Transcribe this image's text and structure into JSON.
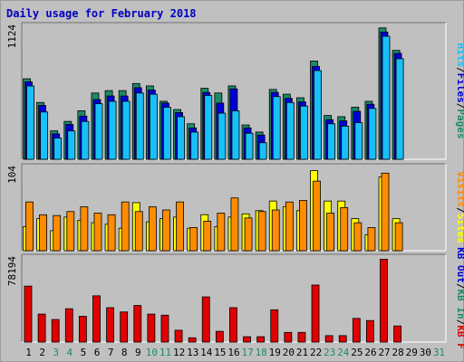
{
  "title": "Daily usage for February 2018",
  "colors": {
    "hits": "#1c8a6a",
    "files": "#0000d8",
    "pages": "#18c0f8",
    "visits": "#ffff00",
    "sites": "#ff8c00",
    "kb_in": "#1c8a6a",
    "kb_out": "#0000d8",
    "kb_f": "#e00000",
    "day_green": "#1c8a6a",
    "day_black": "#000000"
  },
  "chart_data": [
    {
      "type": "bar",
      "name": "panel-hits-files-pages",
      "ymax_label": "1124",
      "ylim": [
        0,
        1124
      ],
      "side_labels": [
        "Pages",
        "Files",
        "Hits"
      ],
      "categories": [
        "1",
        "2",
        "3",
        "4",
        "5",
        "6",
        "7",
        "8",
        "9",
        "10",
        "11",
        "12",
        "13",
        "14",
        "15",
        "16",
        "17",
        "18",
        "19",
        "20",
        "21",
        "22",
        "23",
        "24",
        "25",
        "26",
        "27",
        "28",
        "29",
        "30",
        "31"
      ],
      "series": [
        {
          "name": "Hits",
          "values": [
            680,
            480,
            240,
            320,
            410,
            560,
            580,
            580,
            640,
            620,
            490,
            420,
            300,
            600,
            560,
            620,
            290,
            230,
            590,
            550,
            520,
            830,
            370,
            360,
            440,
            490,
            1110,
            920,
            0,
            0,
            0
          ]
        },
        {
          "name": "Files",
          "values": [
            670,
            470,
            230,
            310,
            380,
            520,
            550,
            550,
            620,
            600,
            490,
            410,
            280,
            580,
            490,
            610,
            280,
            220,
            580,
            530,
            500,
            800,
            350,
            340,
            420,
            480,
            1090,
            910,
            0,
            0,
            0
          ]
        },
        {
          "name": "Pages",
          "values": [
            650,
            430,
            210,
            270,
            350,
            500,
            520,
            520,
            590,
            580,
            470,
            390,
            260,
            570,
            420,
            440,
            250,
            170,
            560,
            510,
            480,
            780,
            330,
            310,
            340,
            460,
            1070,
            880,
            0,
            0,
            0
          ]
        }
      ]
    },
    {
      "type": "bar",
      "name": "panel-visits-sites",
      "ymax_label": "104",
      "ylim": [
        0,
        104
      ],
      "side_labels": [
        "Sites",
        "Visits"
      ],
      "categories": [
        "1",
        "2",
        "3",
        "4",
        "5",
        "6",
        "7",
        "8",
        "9",
        "10",
        "11",
        "12",
        "13",
        "14",
        "15",
        "16",
        "17",
        "18",
        "19",
        "20",
        "21",
        "22",
        "23",
        "24",
        "25",
        "26",
        "27",
        "28",
        "29",
        "30",
        "31"
      ],
      "series": [
        {
          "name": "Visits",
          "values": [
            30,
            40,
            25,
            42,
            38,
            35,
            33,
            28,
            60,
            36,
            40,
            42,
            28,
            45,
            30,
            42,
            46,
            50,
            62,
            55,
            50,
            100,
            62,
            62,
            40,
            20,
            92,
            40,
            0,
            0,
            0
          ]
        },
        {
          "name": "Sites",
          "values": [
            62,
            46,
            45,
            50,
            56,
            48,
            46,
            62,
            50,
            56,
            52,
            62,
            30,
            38,
            48,
            67,
            42,
            50,
            52,
            62,
            64,
            88,
            48,
            55,
            36,
            30,
            98,
            36,
            0,
            0,
            0
          ]
        }
      ]
    },
    {
      "type": "bar",
      "name": "panel-kbf",
      "ymax_label": "78194",
      "ylim": [
        0,
        78194
      ],
      "side_labels": [
        "KB F",
        "KB In",
        "KB Out"
      ],
      "categories": [
        "1",
        "2",
        "3",
        "4",
        "5",
        "6",
        "7",
        "8",
        "9",
        "10",
        "11",
        "12",
        "13",
        "14",
        "15",
        "16",
        "17",
        "18",
        "19",
        "20",
        "21",
        "22",
        "23",
        "24",
        "25",
        "26",
        "27",
        "28",
        "29",
        "30",
        "31"
      ],
      "series": [
        {
          "name": "KB F",
          "values": [
            52000,
            26000,
            21000,
            31000,
            24000,
            43000,
            32000,
            28000,
            34000,
            26000,
            25000,
            11000,
            4000,
            42000,
            10000,
            32000,
            5000,
            5000,
            30000,
            9000,
            9000,
            53000,
            6000,
            6000,
            22000,
            20000,
            77000,
            15000,
            0,
            0,
            0
          ]
        }
      ]
    }
  ],
  "day_colors": [
    "black",
    "black",
    "green",
    "green",
    "black",
    "black",
    "black",
    "black",
    "black",
    "green",
    "green",
    "black",
    "black",
    "black",
    "black",
    "black",
    "green",
    "green",
    "black",
    "black",
    "black",
    "black",
    "green",
    "green",
    "black",
    "black",
    "black",
    "black",
    "black",
    "black",
    "green"
  ]
}
